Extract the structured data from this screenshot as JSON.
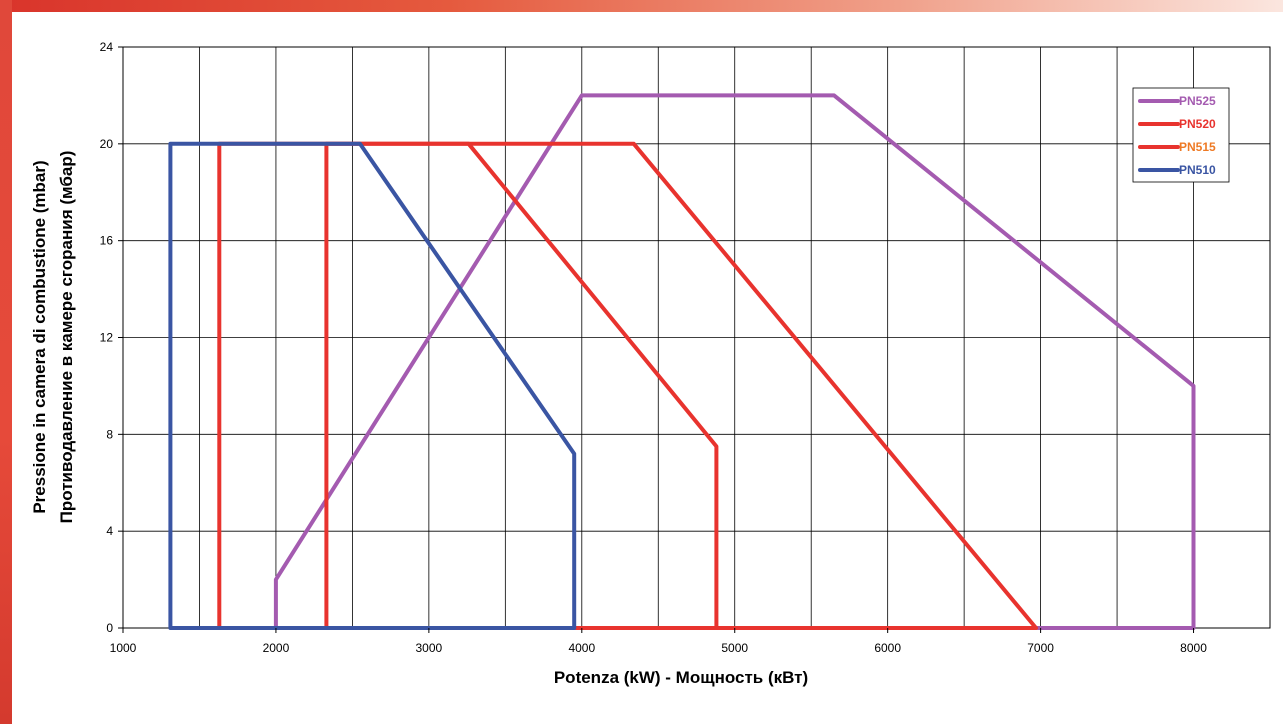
{
  "chart_data": {
    "type": "line",
    "title": "",
    "xlabel": "Potenza (kW) - Мощность  (кВт)",
    "ylabel_lines": [
      "Pressione in camera di combustione (mbar)",
      "Противодавление в камере сгорания (мбар)"
    ],
    "xlim": [
      1000,
      8500
    ],
    "ylim": [
      0,
      24
    ],
    "x_ticks": [
      1000,
      2000,
      3000,
      4000,
      5000,
      6000,
      7000,
      8000
    ],
    "y_ticks": [
      0,
      4,
      8,
      12,
      16,
      20,
      24
    ],
    "x_grid_step": 500,
    "grid": true,
    "legend_position": "top-right",
    "series": [
      {
        "name": "PN525",
        "color": "#a45bb0",
        "label_color": "#a45bb0",
        "points": [
          [
            2000,
            0
          ],
          [
            2000,
            2
          ],
          [
            4000,
            22
          ],
          [
            5650,
            22
          ],
          [
            8000,
            10
          ],
          [
            8000,
            0
          ],
          [
            2000,
            0
          ]
        ]
      },
      {
        "name": "PN520",
        "color": "#e8332e",
        "label_color": "#e8332e",
        "points": [
          [
            2330,
            0
          ],
          [
            2330,
            20
          ],
          [
            4340,
            20
          ],
          [
            6970,
            0
          ],
          [
            2330,
            0
          ]
        ]
      },
      {
        "name": "PN515",
        "color": "#e8332e",
        "label_color": "#ee7a25",
        "points": [
          [
            1630,
            0
          ],
          [
            1630,
            20
          ],
          [
            3260,
            20
          ],
          [
            4880,
            7.5
          ],
          [
            4880,
            0
          ],
          [
            1630,
            0
          ]
        ]
      },
      {
        "name": "PN510",
        "color": "#3a55a3",
        "label_color": "#3a55a3",
        "points": [
          [
            1310,
            0
          ],
          [
            1310,
            20
          ],
          [
            2550,
            20
          ],
          [
            3950,
            7.2
          ],
          [
            3950,
            0
          ],
          [
            1310,
            0
          ]
        ]
      }
    ]
  }
}
